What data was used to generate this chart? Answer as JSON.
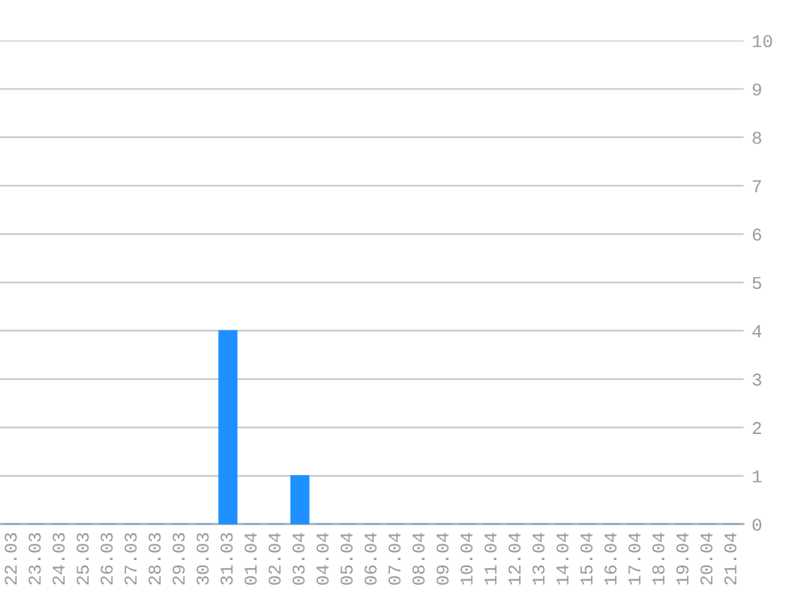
{
  "chart_data": {
    "type": "bar",
    "categories": [
      "22.03",
      "23.03",
      "24.03",
      "25.03",
      "26.03",
      "27.03",
      "28.03",
      "29.03",
      "30.03",
      "31.03",
      "01.04",
      "02.04",
      "03.04",
      "04.04",
      "05.04",
      "06.04",
      "07.04",
      "08.04",
      "09.04",
      "10.04",
      "11.04",
      "12.04",
      "13.04",
      "14.04",
      "15.04",
      "16.04",
      "17.04",
      "18.04",
      "19.04",
      "20.04",
      "21.04"
    ],
    "values": [
      0,
      0,
      0,
      0,
      0,
      0,
      0,
      0,
      0,
      4,
      0,
      0,
      1,
      0,
      0,
      0,
      0,
      0,
      0,
      0,
      0,
      0,
      0,
      0,
      0,
      0,
      0,
      0,
      0,
      0,
      0
    ],
    "color": "#1e90ff",
    "ylim": [
      0,
      10
    ],
    "yticks": [
      0,
      1,
      2,
      3,
      4,
      5,
      6,
      7,
      8,
      9,
      10
    ],
    "grid": "y",
    "legend": false
  }
}
